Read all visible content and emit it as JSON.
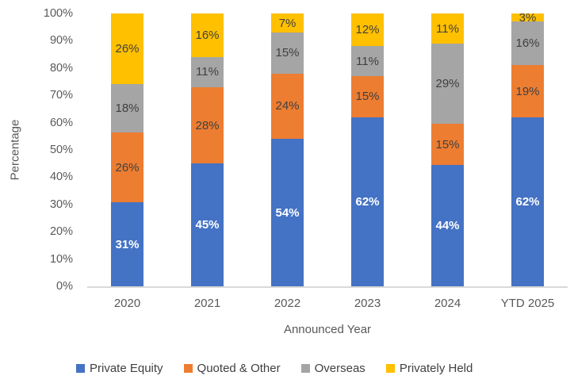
{
  "chart_data": {
    "type": "bar",
    "stacked": true,
    "orientation": "vertical",
    "title": "",
    "xlabel": "Announced Year",
    "ylabel": "Percentage",
    "ylim": [
      0,
      100
    ],
    "yticks": [
      "0%",
      "10%",
      "20%",
      "30%",
      "40%",
      "50%",
      "60%",
      "70%",
      "80%",
      "90%",
      "100%"
    ],
    "grid": false,
    "legend_position": "bottom",
    "label_suffix": "%",
    "axis_line_color": "#d9d9d9",
    "axis_text_color": "#595959",
    "categories": [
      "2020",
      "2021",
      "2022",
      "2023",
      "2024",
      "YTD 2025"
    ],
    "series": [
      {
        "name": "Private Equity",
        "color": "#4472C4",
        "label_color": "#FFFFFF",
        "label_bold": true,
        "values": [
          31,
          45,
          54,
          62,
          44,
          62
        ]
      },
      {
        "name": "Quoted & Other",
        "color": "#ED7D31",
        "label_color": "#404040",
        "label_bold": false,
        "values": [
          26,
          28,
          24,
          15,
          15,
          19
        ]
      },
      {
        "name": "Overseas",
        "color": "#A5A5A5",
        "label_color": "#404040",
        "label_bold": false,
        "values": [
          18,
          11,
          15,
          11,
          29,
          16
        ]
      },
      {
        "name": "Privately Held",
        "color": "#FFC000",
        "label_color": "#404040",
        "label_bold": false,
        "values": [
          26,
          16,
          7,
          12,
          11,
          3
        ]
      }
    ]
  }
}
